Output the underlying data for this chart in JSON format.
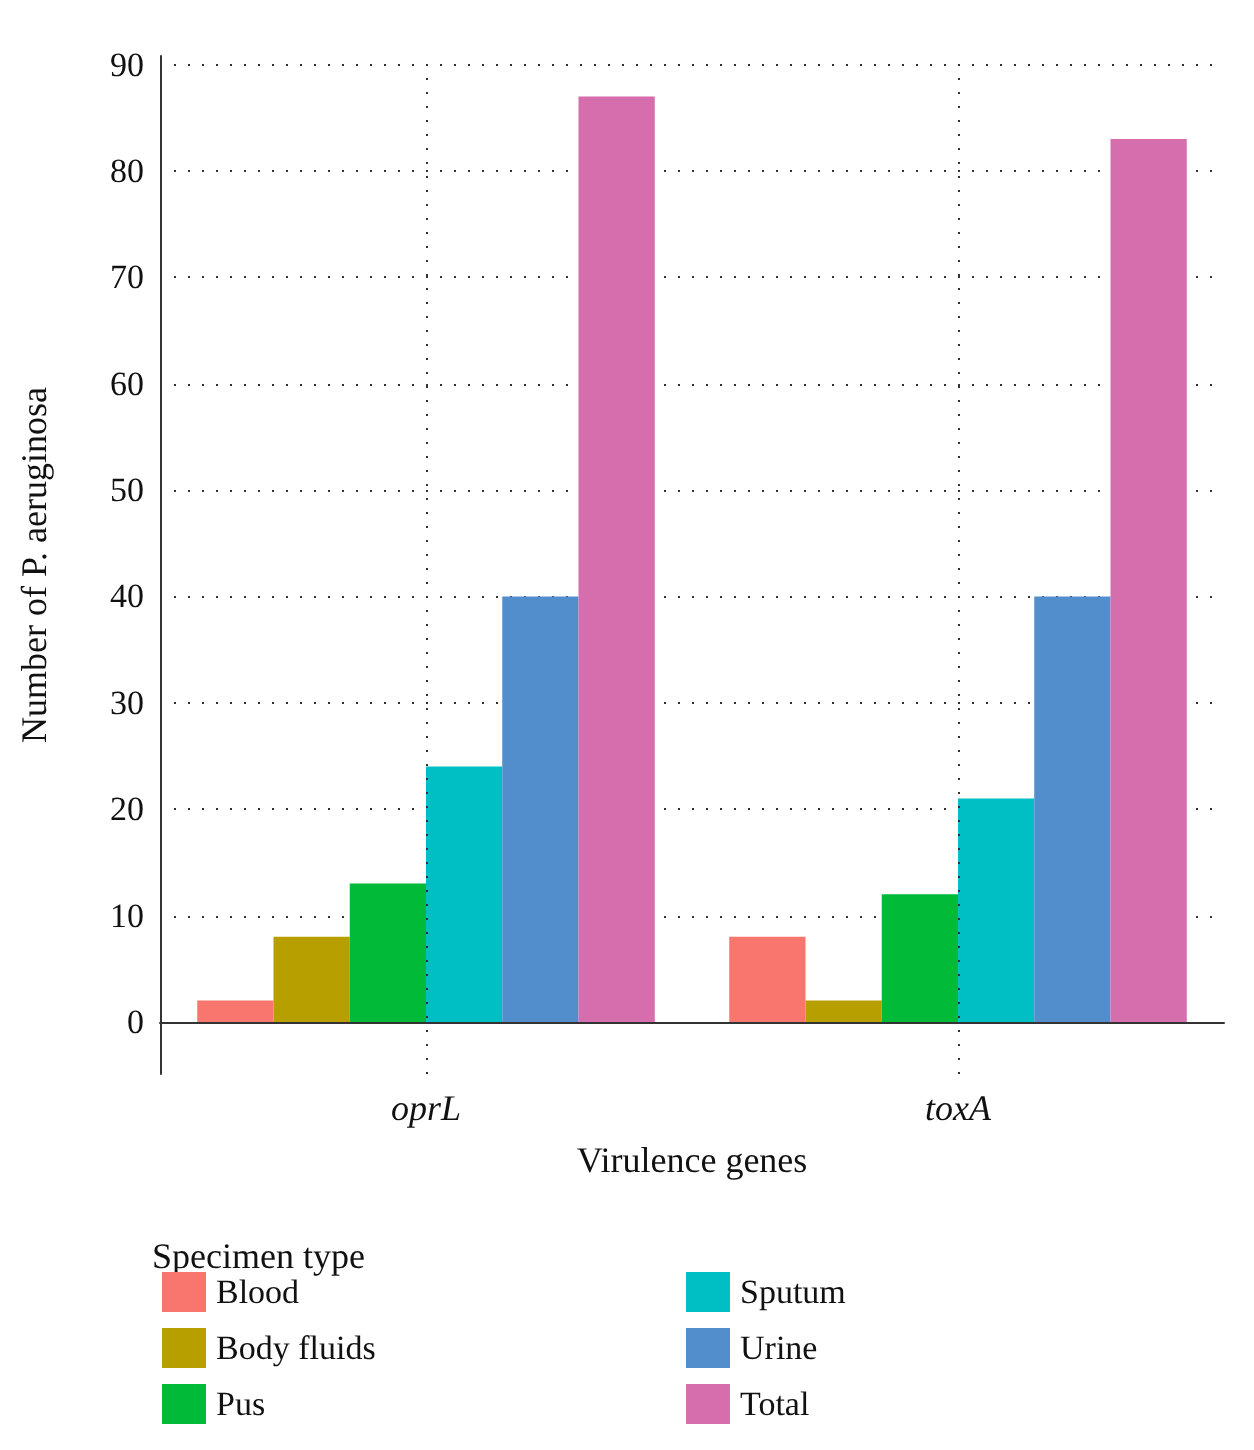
{
  "chart_data": {
    "type": "bar",
    "xlabel": "Virulence genes",
    "ylabel": "Number of P. aeruginosa",
    "legend_title": "Specimen type",
    "categories": [
      "oprL",
      "toxA"
    ],
    "series": [
      {
        "name": "Blood",
        "color": "#f8766d",
        "values": [
          2,
          8
        ]
      },
      {
        "name": "Body fluids",
        "color": "#b79f00",
        "values": [
          8,
          2
        ]
      },
      {
        "name": "Pus",
        "color": "#00ba38",
        "values": [
          13,
          12
        ]
      },
      {
        "name": "Sputum",
        "color": "#00bfc4",
        "values": [
          24,
          21
        ]
      },
      {
        "name": "Urine",
        "color": "#528ecb",
        "values": [
          40,
          40
        ]
      },
      {
        "name": "Total",
        "color": "#d66dac",
        "values": [
          87,
          83
        ]
      }
    ],
    "ylim": [
      -4.9,
      90.8
    ],
    "yticks": [
      0,
      10,
      20,
      30,
      40,
      50,
      60,
      70,
      80,
      90
    ],
    "grid": true,
    "legend": "bottom left"
  }
}
